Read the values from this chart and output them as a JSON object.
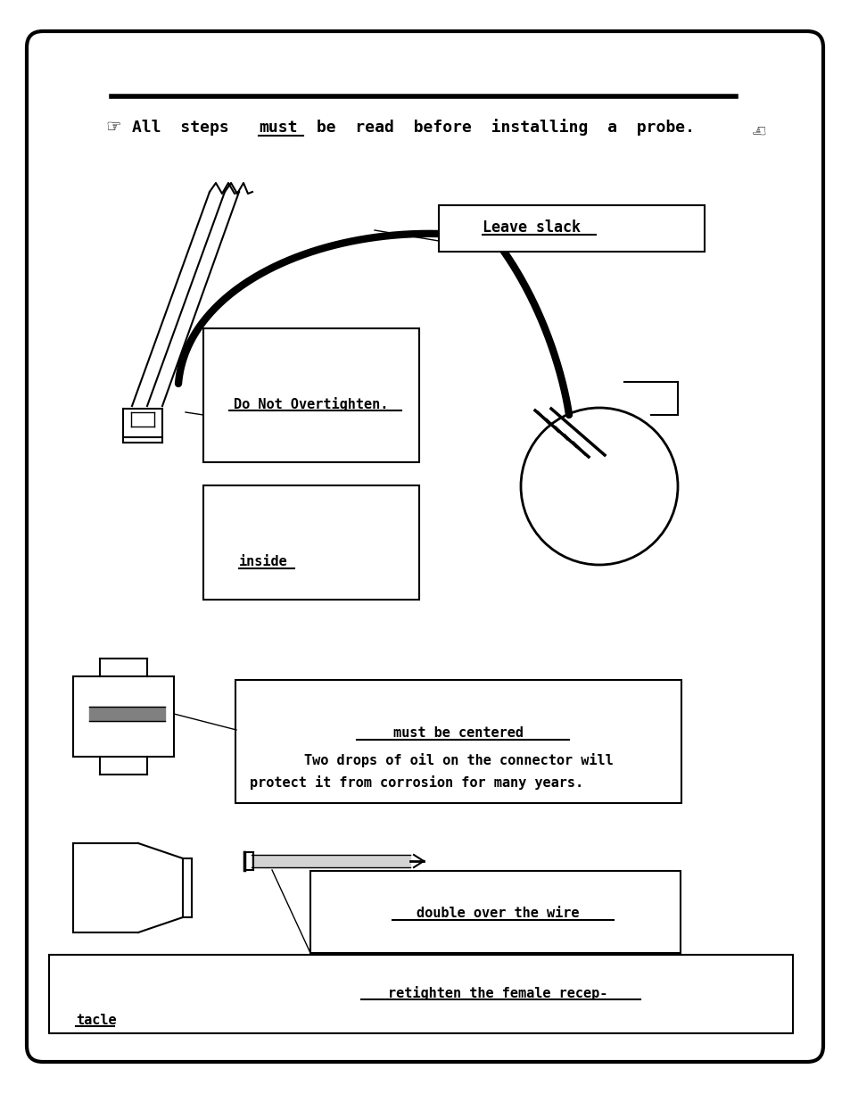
{
  "bg_color": "#ffffff",
  "border_color": "#000000",
  "box1_label": "Leave slack",
  "box2_label": "Do Not Overtighten.",
  "box3_label": "inside",
  "box4_label": "must be centered",
  "box4_body1": "Two drops of oil on the connector will",
  "box4_body2": "protect it from corrosion for many years.",
  "box5_label": "double over the wire",
  "box6_line1": "retighten the female recep-",
  "box6_line2": "tacle",
  "figsize": [
    9.54,
    12.35
  ],
  "dpi": 100
}
